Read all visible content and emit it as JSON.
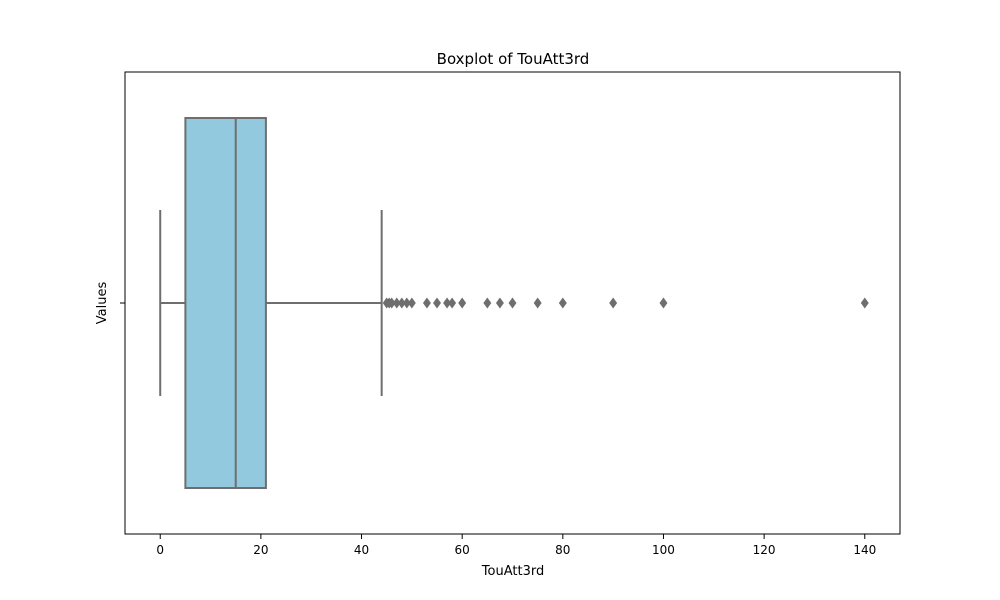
{
  "chart_data": {
    "type": "box",
    "orientation": "horizontal",
    "title": "Boxplot of TouAtt3rd",
    "xlabel": "TouAtt3rd",
    "ylabel": "Values",
    "xlim": [
      -7,
      147
    ],
    "xticks": [
      0,
      20,
      40,
      60,
      80,
      100,
      120,
      140
    ],
    "xtick_labels": [
      "0",
      "20",
      "40",
      "60",
      "80",
      "100",
      "120",
      "140"
    ],
    "box": {
      "whisker_low": 0,
      "q1": 5,
      "median": 15,
      "q3": 21,
      "whisker_high": 44
    },
    "outliers": [
      45,
      45.5,
      46,
      47,
      48,
      49,
      50,
      53,
      55,
      57,
      58,
      60,
      65,
      67.5,
      70,
      75,
      80,
      90,
      100,
      140
    ],
    "box_color": "#92c9df",
    "line_color": "#6e6e6e"
  }
}
